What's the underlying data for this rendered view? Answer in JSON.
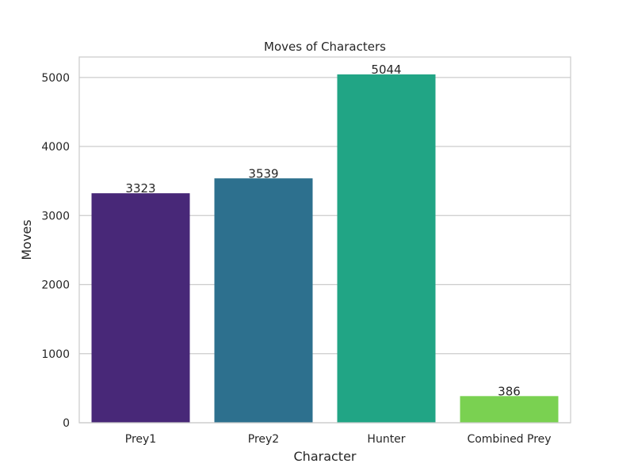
{
  "chart_data": {
    "type": "bar",
    "title": "Moves of Characters",
    "xlabel": "Character",
    "ylabel": "Moves",
    "categories": [
      "Prey1",
      "Prey2",
      "Hunter",
      "Combined Prey"
    ],
    "values": [
      3323,
      3539,
      5044,
      386
    ],
    "data_labels": [
      "3323",
      "3539",
      "5044",
      "386"
    ],
    "colors": [
      "#482878",
      "#2d708e",
      "#21a585",
      "#7ad151"
    ],
    "yticks": [
      0,
      1000,
      2000,
      3000,
      4000,
      5000
    ],
    "ytick_labels": [
      "0",
      "1000",
      "2000",
      "3000",
      "4000",
      "5000"
    ],
    "ylim": [
      0,
      5296
    ],
    "grid": true,
    "grid_axis": "y"
  }
}
